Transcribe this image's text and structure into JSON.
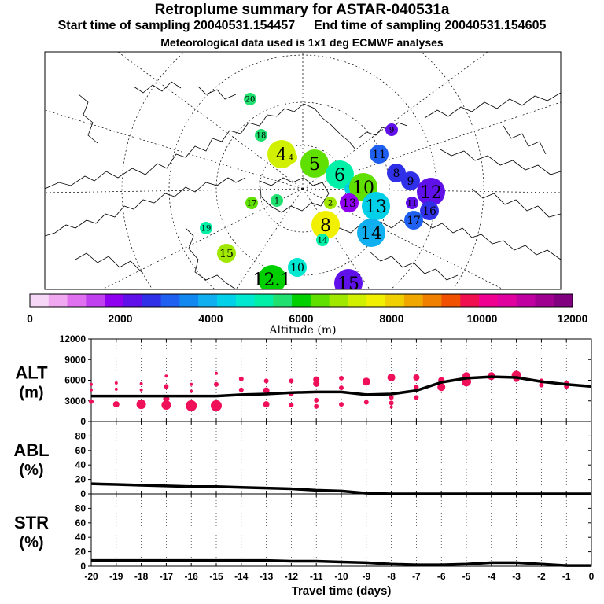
{
  "header": {
    "title": "Retroplume summary for ASTAR-040531a",
    "start_label": "Start time of sampling 20040531.154457",
    "end_label": "End time of sampling 20040531.154605",
    "met_label": "Meteorological data used is 1x1 deg ECMWF analyses"
  },
  "map": {
    "points": [
      {
        "label": "1",
        "alt": 5600,
        "size": "s"
      },
      {
        "label": "2",
        "alt": 6800,
        "size": "s"
      },
      {
        "label": "3",
        "alt": 7000,
        "size": "s"
      },
      {
        "label": "4",
        "alt": 7400,
        "size": "l"
      },
      {
        "label": "4",
        "alt": 7200,
        "size": "s"
      },
      {
        "label": "5",
        "alt": 6500,
        "size": "l"
      },
      {
        "label": "5",
        "alt": 6000,
        "size": "s"
      },
      {
        "label": "6",
        "alt": 5200,
        "size": "l"
      },
      {
        "label": "7",
        "alt": 4400,
        "size": "s"
      },
      {
        "label": "8",
        "alt": 7600,
        "size": "l"
      },
      {
        "label": "8",
        "alt": 2800,
        "size": "m"
      },
      {
        "label": "9",
        "alt": 2600,
        "size": "m"
      },
      {
        "label": "9",
        "alt": 2400,
        "size": "s"
      },
      {
        "label": "10",
        "alt": 4800,
        "size": "m"
      },
      {
        "label": "10",
        "alt": 6600,
        "size": "l"
      },
      {
        "label": "11",
        "alt": 3200,
        "size": "m"
      },
      {
        "label": "11",
        "alt": 2400,
        "size": "s"
      },
      {
        "label": "12",
        "alt": 2200,
        "size": "l"
      },
      {
        "label": "12.1",
        "alt": 5800,
        "size": "l"
      },
      {
        "label": "13",
        "alt": 4200,
        "size": "l"
      },
      {
        "label": "13",
        "alt": 2000,
        "size": "m"
      },
      {
        "label": "14",
        "alt": 3800,
        "size": "l"
      },
      {
        "label": "14",
        "alt": 5000,
        "size": "s"
      },
      {
        "label": "15",
        "alt": 2400,
        "size": "l"
      },
      {
        "label": "15",
        "alt": 6800,
        "size": "m"
      },
      {
        "label": "16",
        "alt": 2600,
        "size": "m"
      },
      {
        "label": "17",
        "alt": 3000,
        "size": "m"
      },
      {
        "label": "17",
        "alt": 6600,
        "size": "s"
      },
      {
        "label": "18",
        "alt": 5600,
        "size": "s"
      },
      {
        "label": "19",
        "alt": 5000,
        "size": "s"
      },
      {
        "label": "20",
        "alt": 5600,
        "size": "s"
      }
    ]
  },
  "colorbar": {
    "colors": [
      "#f7d7f7",
      "#f0a8f0",
      "#e070f0",
      "#c040f0",
      "#9000f0",
      "#6010e8",
      "#3030e8",
      "#2060f0",
      "#1088f0",
      "#10b0f0",
      "#00d0e8",
      "#00e8d0",
      "#00f0a8",
      "#20e070",
      "#00d000",
      "#60e000",
      "#a0e800",
      "#d0f000",
      "#f0f000",
      "#f0d000",
      "#f0a800",
      "#f08000",
      "#f05000",
      "#f01050",
      "#f00090",
      "#e000a0",
      "#c000a0",
      "#a00090",
      "#800080"
    ],
    "ticks": [
      "0",
      "2000",
      "4000",
      "6000",
      "8000",
      "10000",
      "12000"
    ],
    "label": "Altitude (m)"
  },
  "chart_data": [
    {
      "type": "line",
      "title": "ALT",
      "ylabel": "(m)",
      "xlabel": "Travel time (days)",
      "x": [
        -20,
        -19,
        -18,
        -17,
        -16,
        -15,
        -14,
        -13,
        -12,
        -11,
        -10,
        -9,
        -8,
        -7,
        -6,
        -5,
        -4,
        -3,
        -2,
        -1,
        0
      ],
      "xticks": [
        "-20",
        "-19",
        "-18",
        "-17",
        "-16",
        "-15",
        "-14",
        "-13",
        "-12",
        "-11",
        "-10",
        "-9",
        "-8",
        "-7",
        "-6",
        "-5",
        "-4",
        "-3",
        "-2",
        "-1",
        "0"
      ],
      "ylim": [
        0,
        12000
      ],
      "yticks": [
        "0",
        "3000",
        "6000",
        "9000",
        "12000"
      ],
      "series": [
        {
          "name": "mean altitude",
          "values": [
            3700,
            3700,
            3700,
            3700,
            3700,
            3700,
            3900,
            4000,
            4200,
            4300,
            4300,
            3900,
            4000,
            4500,
            5700,
            6300,
            6500,
            6400,
            5800,
            5400,
            5100
          ]
        }
      ],
      "scatter": [
        {
          "x": -20,
          "y": 5400,
          "r": 2
        },
        {
          "x": -20,
          "y": 4600,
          "r": 2
        },
        {
          "x": -20,
          "y": 2900,
          "r": 3
        },
        {
          "x": -19,
          "y": 5600,
          "r": 2
        },
        {
          "x": -19,
          "y": 4700,
          "r": 2
        },
        {
          "x": -19,
          "y": 2500,
          "r": 4
        },
        {
          "x": -18,
          "y": 5500,
          "r": 2
        },
        {
          "x": -18,
          "y": 4600,
          "r": 2
        },
        {
          "x": -18,
          "y": 2500,
          "r": 6
        },
        {
          "x": -17,
          "y": 6600,
          "r": 2
        },
        {
          "x": -17,
          "y": 5100,
          "r": 3
        },
        {
          "x": -17,
          "y": 3300,
          "r": 4
        },
        {
          "x": -17,
          "y": 2400,
          "r": 6
        },
        {
          "x": -16,
          "y": 5400,
          "r": 2
        },
        {
          "x": -16,
          "y": 4400,
          "r": 2
        },
        {
          "x": -16,
          "y": 2300,
          "r": 7
        },
        {
          "x": -15,
          "y": 7000,
          "r": 2
        },
        {
          "x": -15,
          "y": 5400,
          "r": 3
        },
        {
          "x": -15,
          "y": 2300,
          "r": 7
        },
        {
          "x": -14,
          "y": 6200,
          "r": 3
        },
        {
          "x": -14,
          "y": 4600,
          "r": 3
        },
        {
          "x": -13,
          "y": 5900,
          "r": 3
        },
        {
          "x": -13,
          "y": 4500,
          "r": 4
        },
        {
          "x": -13,
          "y": 2500,
          "r": 4
        },
        {
          "x": -12,
          "y": 5900,
          "r": 3
        },
        {
          "x": -12,
          "y": 4000,
          "r": 3
        },
        {
          "x": -12,
          "y": 2400,
          "r": 3
        },
        {
          "x": -11,
          "y": 6100,
          "r": 4
        },
        {
          "x": -11,
          "y": 5500,
          "r": 4
        },
        {
          "x": -11,
          "y": 3100,
          "r": 3
        },
        {
          "x": -11,
          "y": 2200,
          "r": 3
        },
        {
          "x": -10,
          "y": 6300,
          "r": 3
        },
        {
          "x": -10,
          "y": 4900,
          "r": 3
        },
        {
          "x": -10,
          "y": 2500,
          "r": 3
        },
        {
          "x": -9,
          "y": 5800,
          "r": 5
        },
        {
          "x": -9,
          "y": 2800,
          "r": 3
        },
        {
          "x": -8,
          "y": 6400,
          "r": 5
        },
        {
          "x": -8,
          "y": 3500,
          "r": 3
        },
        {
          "x": -8,
          "y": 2700,
          "r": 3
        },
        {
          "x": -8,
          "y": 2100,
          "r": 2
        },
        {
          "x": -7,
          "y": 6400,
          "r": 4
        },
        {
          "x": -7,
          "y": 5000,
          "r": 3
        },
        {
          "x": -7,
          "y": 3500,
          "r": 3
        },
        {
          "x": -6,
          "y": 6000,
          "r": 4
        },
        {
          "x": -6,
          "y": 5000,
          "r": 5
        },
        {
          "x": -5,
          "y": 6600,
          "r": 5
        },
        {
          "x": -5,
          "y": 5800,
          "r": 6
        },
        {
          "x": -4,
          "y": 6600,
          "r": 5
        },
        {
          "x": -3,
          "y": 6700,
          "r": 6
        },
        {
          "x": -3,
          "y": 6200,
          "r": 4
        },
        {
          "x": -2,
          "y": 5900,
          "r": 3
        },
        {
          "x": -2,
          "y": 5300,
          "r": 3
        },
        {
          "x": -1,
          "y": 5600,
          "r": 3
        },
        {
          "x": -1,
          "y": 5100,
          "r": 3
        }
      ]
    },
    {
      "type": "line",
      "title": "ABL",
      "ylabel": "(%)",
      "x": [
        -20,
        -19,
        -18,
        -17,
        -16,
        -15,
        -14,
        -13,
        -12,
        -11,
        -10,
        -9,
        -8,
        -7,
        -6,
        -5,
        -4,
        -3,
        -2,
        -1,
        0
      ],
      "ylim": [
        0,
        100
      ],
      "yticks": [
        "0",
        "20",
        "40",
        "60",
        "80"
      ],
      "series": [
        {
          "name": "ABL fraction",
          "values": [
            14,
            13,
            12,
            11,
            10,
            10,
            9,
            8,
            7,
            5,
            4,
            1,
            0,
            0,
            0,
            0,
            0,
            0,
            0,
            0,
            0
          ]
        }
      ]
    },
    {
      "type": "line",
      "title": "STR",
      "ylabel": "(%)",
      "x": [
        -20,
        -19,
        -18,
        -17,
        -16,
        -15,
        -14,
        -13,
        -12,
        -11,
        -10,
        -9,
        -8,
        -7,
        -6,
        -5,
        -4,
        -3,
        -2,
        -1,
        0
      ],
      "ylim": [
        0,
        100
      ],
      "yticks": [
        "0",
        "20",
        "40",
        "60",
        "80"
      ],
      "series": [
        {
          "name": "stratospheric fraction",
          "values": [
            8,
            8,
            8,
            8,
            8,
            8,
            8,
            8,
            7,
            7,
            6,
            5,
            3,
            2,
            2,
            3,
            5,
            5,
            3,
            1,
            1
          ]
        }
      ]
    }
  ]
}
